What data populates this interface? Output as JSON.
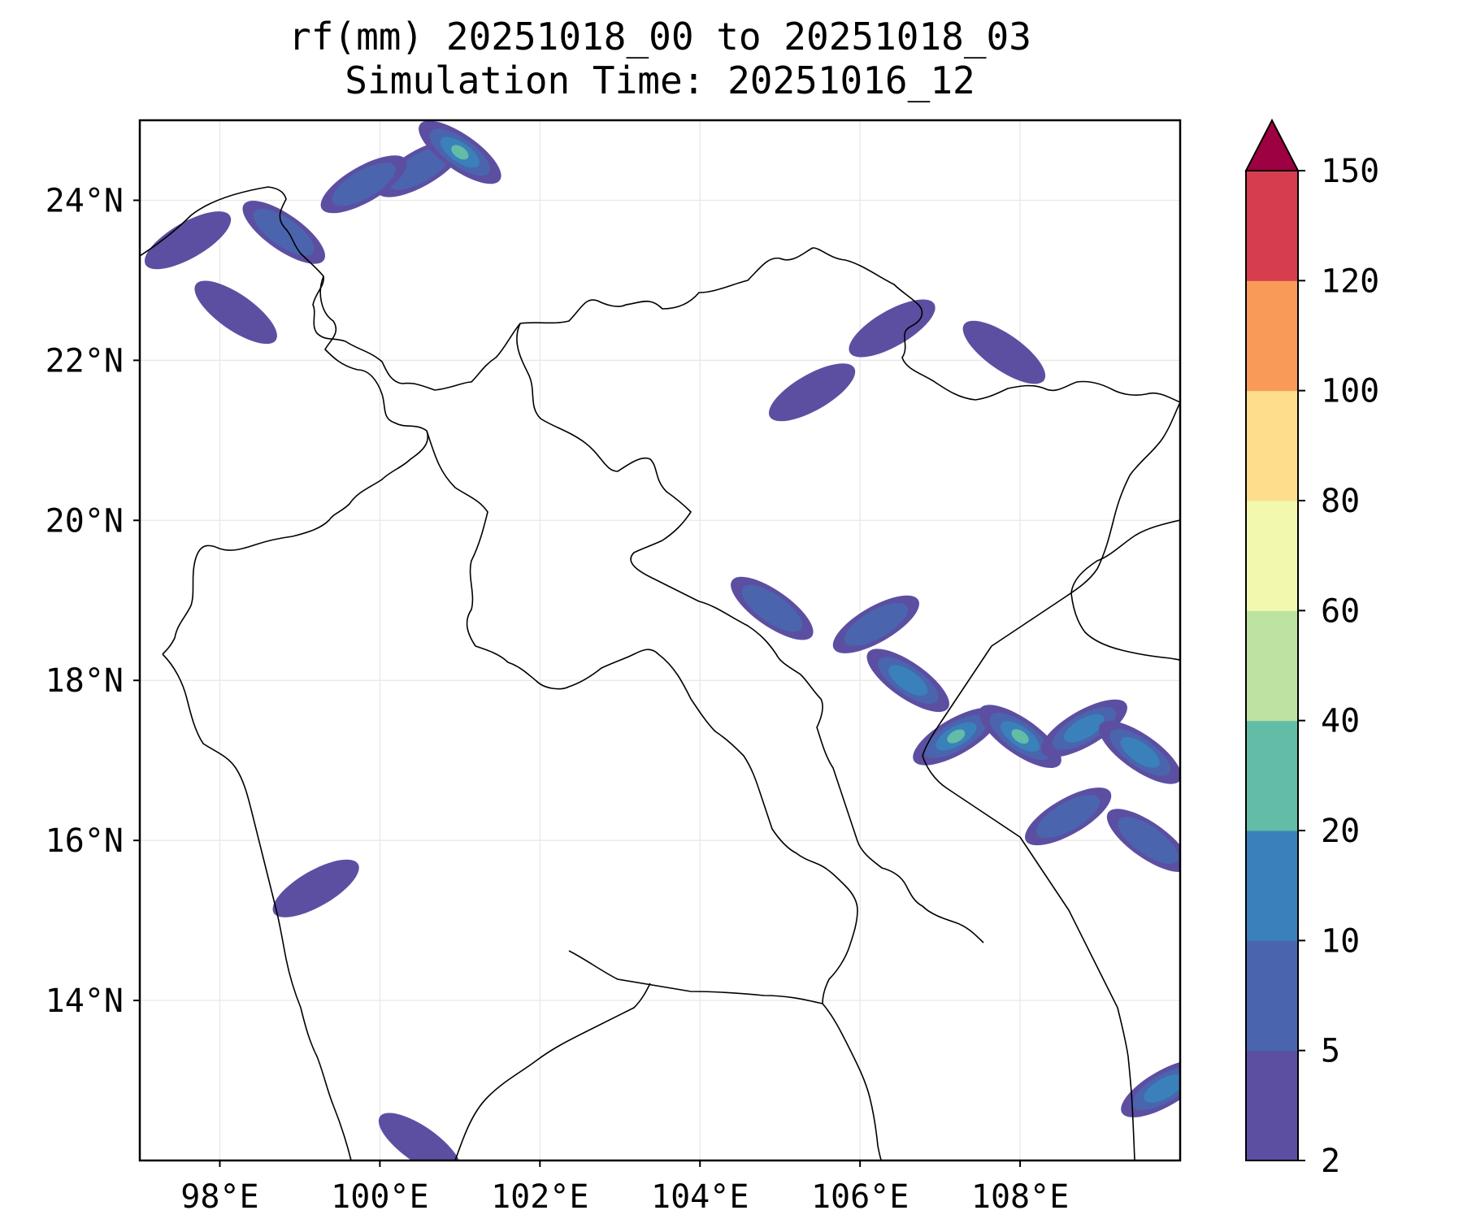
{
  "chart_data": {
    "type": "heatmap",
    "title_line1": "rf(mm) 20251018_00 to 20251018_03",
    "title_line2": "Simulation Time: 20251016_12",
    "variable": "rf(mm)",
    "x_axis": {
      "range_deg": [
        97,
        110
      ],
      "ticks": [
        98,
        100,
        102,
        104,
        106,
        108
      ],
      "tick_labels": [
        "98°E",
        "100°E",
        "102°E",
        "104°E",
        "106°E",
        "108°E"
      ]
    },
    "y_axis": {
      "range_deg": [
        12,
        25
      ],
      "ticks": [
        14,
        16,
        18,
        20,
        22,
        24
      ],
      "tick_labels": [
        "14°N",
        "16°N",
        "18°N",
        "20°N",
        "22°N",
        "24°N"
      ]
    },
    "grid": true,
    "colorbar": {
      "levels": [
        2,
        5,
        10,
        20,
        40,
        60,
        80,
        100,
        120,
        150
      ],
      "labels": [
        "2",
        "5",
        "10",
        "20",
        "40",
        "60",
        "80",
        "100",
        "120",
        "150"
      ],
      "colors": [
        "#5c4fa2",
        "#4a65ae",
        "#3a80ba",
        "#62bca6",
        "#bde3a2",
        "#f2f9ae",
        "#fcde8c",
        "#fa9a59",
        "#d63e4f"
      ],
      "extend_color": "#9d0142",
      "extend": "max"
    },
    "rain_cells": [
      {
        "lon": 100.5,
        "lat": 24.4,
        "level": 1
      },
      {
        "lon": 101.0,
        "lat": 24.6,
        "level": 3
      },
      {
        "lon": 99.8,
        "lat": 24.2,
        "level": 1
      },
      {
        "lon": 98.8,
        "lat": 23.6,
        "level": 1
      },
      {
        "lon": 97.6,
        "lat": 23.5,
        "level": 0
      },
      {
        "lon": 98.2,
        "lat": 22.6,
        "level": 0
      },
      {
        "lon": 106.4,
        "lat": 22.4,
        "level": 0
      },
      {
        "lon": 107.8,
        "lat": 22.1,
        "level": 0
      },
      {
        "lon": 105.4,
        "lat": 21.6,
        "level": 0
      },
      {
        "lon": 104.9,
        "lat": 18.9,
        "level": 1
      },
      {
        "lon": 106.2,
        "lat": 18.7,
        "level": 1
      },
      {
        "lon": 106.6,
        "lat": 18.0,
        "level": 2
      },
      {
        "lon": 107.2,
        "lat": 17.3,
        "level": 3
      },
      {
        "lon": 108.0,
        "lat": 17.3,
        "level": 3
      },
      {
        "lon": 108.8,
        "lat": 17.4,
        "level": 2
      },
      {
        "lon": 109.5,
        "lat": 17.1,
        "level": 2
      },
      {
        "lon": 108.6,
        "lat": 16.3,
        "level": 1
      },
      {
        "lon": 109.6,
        "lat": 16.0,
        "level": 1
      },
      {
        "lon": 109.8,
        "lat": 12.9,
        "level": 2
      },
      {
        "lon": 100.5,
        "lat": 12.2,
        "level": 0
      },
      {
        "lon": 99.2,
        "lat": 15.4,
        "level": 0
      }
    ]
  }
}
